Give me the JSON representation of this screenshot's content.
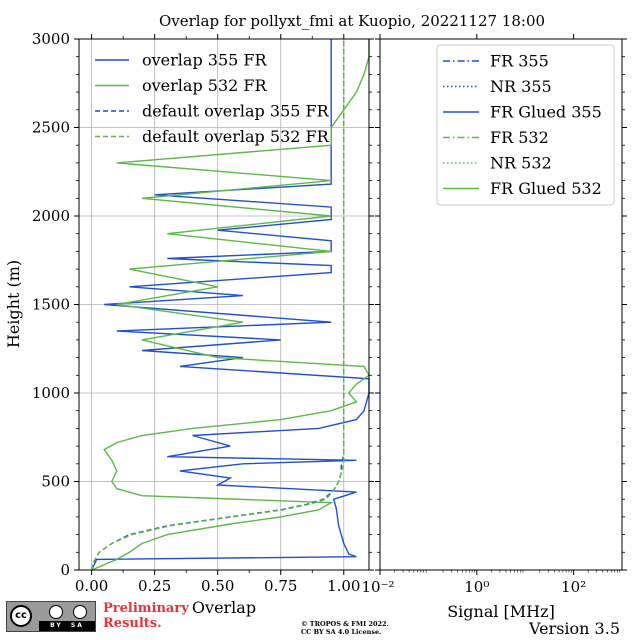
{
  "figure": {
    "title": "Overlap for pollyxt_fmi at Kuopio, 20221127 18:00",
    "version": "Version 3.5",
    "preliminary": [
      "Preliminary",
      "Results."
    ],
    "license": [
      "© TROPOS & FMI 2022.",
      "CC BY SA 4.0 License."
    ],
    "badge": {
      "cc": "cc",
      "by": "BY",
      "sa": "SA"
    }
  },
  "colors": {
    "blue": "#1f4fd6",
    "green": "#5cb946"
  },
  "chart_data": [
    {
      "type": "line",
      "xlabel": "Overlap",
      "ylabel": "Height (m)",
      "xlim": [
        -0.05,
        1.1
      ],
      "ylim": [
        0,
        3000
      ],
      "xticks": [
        0.0,
        0.25,
        0.5,
        0.75,
        1.0
      ],
      "xtick_labels": [
        "0.00",
        "0.25",
        "0.50",
        "0.75",
        "1.00"
      ],
      "yticks": [
        0,
        500,
        1000,
        1500,
        2000,
        2500,
        3000
      ],
      "ytick_labels": [
        "0",
        "500",
        "1000",
        "1500",
        "2000",
        "2500",
        "3000"
      ],
      "grid": true,
      "legend_position": "top-left",
      "series": [
        {
          "name": "overlap 355 FR",
          "color": "#1f4fd6",
          "style": "solid",
          "y": [
            0,
            30,
            60,
            75,
            90,
            150,
            250,
            350,
            400,
            440,
            480,
            520,
            560,
            600,
            620,
            640,
            700,
            760,
            800,
            850,
            900,
            1000,
            1040,
            1080,
            1150,
            1200,
            1240,
            1300,
            1350,
            1400,
            1500,
            1550,
            1600,
            1680,
            1720,
            1760,
            1800,
            1860,
            1920,
            1980,
            2050,
            2120,
            2180,
            2240,
            2300,
            2400,
            2500,
            2600,
            2700,
            2800,
            2900,
            3000
          ],
          "x": [
            0.0,
            0.01,
            0.02,
            1.05,
            1.02,
            1.0,
            0.98,
            0.97,
            0.96,
            1.05,
            0.5,
            0.55,
            0.35,
            0.6,
            1.05,
            0.3,
            0.55,
            0.4,
            0.9,
            1.05,
            1.08,
            1.1,
            1.1,
            1.1,
            0.35,
            0.6,
            0.2,
            0.75,
            0.1,
            0.95,
            0.05,
            0.6,
            0.15,
            0.95,
            0.95,
            0.3,
            0.95,
            0.95,
            0.5,
            0.95,
            0.95,
            0.25,
            0.95,
            0.95,
            0.95,
            0.95,
            0.95,
            0.95,
            0.95,
            0.95,
            0.95,
            0.95
          ]
        },
        {
          "name": "overlap 532 FR",
          "color": "#5cb946",
          "style": "solid",
          "y": [
            0,
            30,
            60,
            100,
            150,
            200,
            260,
            300,
            340,
            380,
            420,
            460,
            500,
            560,
            620,
            680,
            720,
            760,
            800,
            850,
            900,
            950,
            1000,
            1050,
            1100,
            1150,
            1200,
            1300,
            1400,
            1500,
            1600,
            1700,
            1800,
            1900,
            2000,
            2100,
            2200,
            2300,
            2400,
            2500,
            2600,
            2700,
            2800,
            2900,
            3000
          ],
          "x": [
            0.0,
            0.05,
            0.1,
            0.15,
            0.2,
            0.3,
            0.55,
            0.75,
            0.9,
            0.95,
            0.2,
            0.1,
            0.08,
            0.1,
            0.08,
            0.05,
            0.1,
            0.2,
            0.4,
            0.75,
            0.95,
            1.05,
            1.02,
            1.05,
            1.1,
            1.08,
            0.5,
            0.2,
            0.6,
            0.1,
            0.5,
            0.15,
            0.95,
            0.3,
            0.95,
            0.2,
            0.95,
            0.1,
            0.95,
            0.95,
            1.0,
            1.05,
            1.08,
            1.1,
            1.1
          ]
        },
        {
          "name": "default overlap 355 FR",
          "color": "#1f4fd6",
          "style": "dashed",
          "y": [
            0,
            50,
            100,
            150,
            200,
            250,
            280,
            310,
            340,
            370,
            400,
            450,
            500,
            550,
            600,
            650,
            700,
            800,
            900,
            1000,
            1200,
            1500,
            2000,
            2500,
            3000
          ],
          "x": [
            0.0,
            0.01,
            0.03,
            0.08,
            0.15,
            0.3,
            0.45,
            0.6,
            0.75,
            0.85,
            0.92,
            0.96,
            0.98,
            0.99,
            0.99,
            1.0,
            1.0,
            1.0,
            1.0,
            1.0,
            1.0,
            1.0,
            1.0,
            1.0,
            1.0
          ]
        },
        {
          "name": "default overlap 532 FR",
          "color": "#5cb946",
          "style": "dashed",
          "y": [
            0,
            50,
            100,
            150,
            200,
            250,
            280,
            310,
            340,
            370,
            400,
            450,
            500,
            550,
            600,
            650,
            700,
            800,
            900,
            1000,
            1200,
            1500,
            2000,
            2500,
            3000
          ],
          "x": [
            0.0,
            0.01,
            0.03,
            0.08,
            0.16,
            0.31,
            0.46,
            0.61,
            0.76,
            0.86,
            0.93,
            0.96,
            0.98,
            0.99,
            1.0,
            1.0,
            1.0,
            1.0,
            1.0,
            1.0,
            1.0,
            1.0,
            1.0,
            1.0,
            1.0
          ]
        }
      ]
    },
    {
      "type": "line",
      "xlabel": "Signal [MHz]",
      "ylabel": "",
      "xscale": "log",
      "xlim": [
        0.01,
        1000
      ],
      "ylim": [
        0,
        3000
      ],
      "xticks": [
        0.01,
        1,
        100
      ],
      "xtick_labels": [
        "10⁻²",
        "10⁰",
        "10²"
      ],
      "legend_position": "top-right",
      "series": [
        {
          "name": "FR 355",
          "color": "#1f4fd6",
          "style": "dashdot",
          "x": [],
          "y": []
        },
        {
          "name": "NR 355",
          "color": "#1f4fd6",
          "style": "dotted",
          "x": [],
          "y": []
        },
        {
          "name": "FR Glued 355",
          "color": "#1f4fd6",
          "style": "solid",
          "x": [],
          "y": []
        },
        {
          "name": "FR 532",
          "color": "#5cb946",
          "style": "dashdot",
          "x": [],
          "y": []
        },
        {
          "name": "NR 532",
          "color": "#5cb946",
          "style": "dotted",
          "x": [],
          "y": []
        },
        {
          "name": "FR Glued 532",
          "color": "#5cb946",
          "style": "solid",
          "x": [],
          "y": []
        }
      ]
    }
  ]
}
